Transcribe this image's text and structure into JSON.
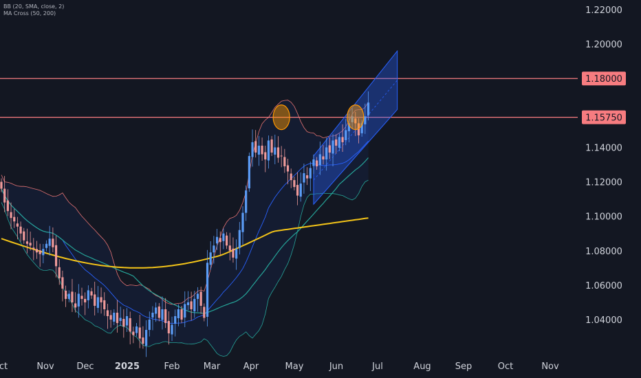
{
  "legend": {
    "bb": "BB (20, SMA, close, 2)",
    "ma": "MA Cross (50, 200)"
  },
  "chart_data": {
    "type": "candlestick",
    "x_ticks": [
      "ct",
      "Nov",
      "Dec",
      "2025",
      "Feb",
      "Mar",
      "Apr",
      "May",
      "Jun",
      "Jul",
      "Aug",
      "Sep",
      "Oct",
      "Nov"
    ],
    "y_ticks": [
      "1.22000",
      "1.20000",
      "1.18000",
      "1.15750",
      "1.14000",
      "1.12000",
      "1.10000",
      "1.08000",
      "1.06000",
      "1.04000"
    ],
    "ylim": [
      1.0215,
      1.2232
    ],
    "levels": [
      {
        "value": 1.18,
        "label": "1.18000",
        "color": "#f77c80"
      },
      {
        "value": 1.1575,
        "label": "1.15750",
        "color": "#f77c80"
      }
    ],
    "colors": {
      "up": "#5b9cf6",
      "down": "#ef9a9a",
      "ma50": "#26a69a",
      "ma200": "#f5c518",
      "bb_band": "#e57373",
      "bb_basis": "#2962ff",
      "highlight": "#ff9800",
      "channel": "#2962ff"
    },
    "closes": [
      1.116,
      1.108,
      1.103,
      1.099,
      1.097,
      1.094,
      1.09,
      1.086,
      1.084,
      1.083,
      1.081,
      1.079,
      1.078,
      1.081,
      1.084,
      1.087,
      1.082,
      1.071,
      1.064,
      1.058,
      1.052,
      1.055,
      1.05,
      1.047,
      1.055,
      1.052,
      1.05,
      1.057,
      1.054,
      1.048,
      1.053,
      1.05,
      1.046,
      1.042,
      1.04,
      1.044,
      1.038,
      1.041,
      1.036,
      1.042,
      1.033,
      1.031,
      1.036,
      1.029,
      1.026,
      1.034,
      1.04,
      1.044,
      1.047,
      1.041,
      1.046,
      1.038,
      1.032,
      1.037,
      1.042,
      1.046,
      1.04,
      1.049,
      1.05,
      1.046,
      1.052,
      1.055,
      1.048,
      1.041,
      1.073,
      1.079,
      1.083,
      1.088,
      1.085,
      1.09,
      1.083,
      1.08,
      1.076,
      1.081,
      1.092,
      1.102,
      1.115,
      1.135,
      1.143,
      1.137,
      1.141,
      1.136,
      1.133,
      1.144,
      1.137,
      1.14,
      1.134,
      1.135,
      1.129,
      1.126,
      1.121,
      1.117,
      1.112,
      1.119,
      1.125,
      1.122,
      1.128,
      1.133,
      1.129,
      1.136,
      1.133,
      1.14,
      1.137,
      1.144,
      1.141,
      1.146,
      1.143,
      1.15,
      1.154,
      1.158,
      1.154,
      1.147,
      1.154,
      1.158,
      1.166
    ]
  }
}
